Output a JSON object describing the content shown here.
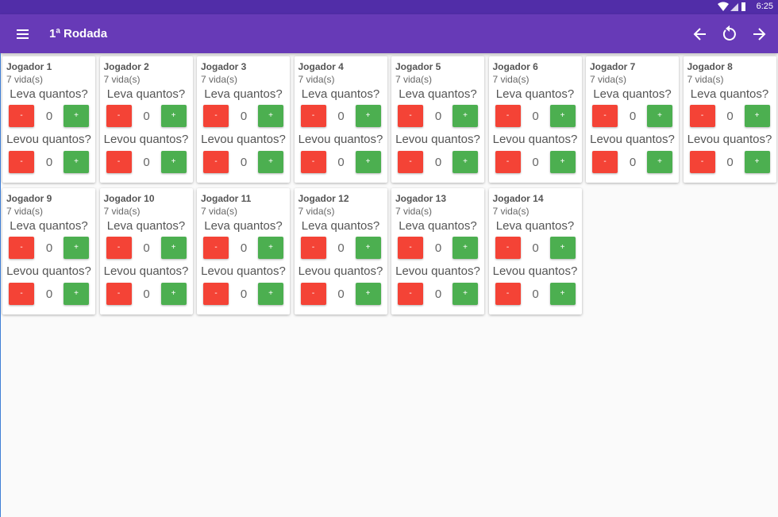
{
  "status_bar": {
    "time": "6:25"
  },
  "app_bar": {
    "title": "1ª Rodada"
  },
  "players": [
    {
      "name": "Jogador 1",
      "lives": "7 vida(s)",
      "bid_label": "Leva quantos?",
      "bid_minus": "-",
      "bid_value": 0,
      "bid_plus": "+",
      "won_label": "Levou quantos?",
      "won_minus": "-",
      "won_value": 0,
      "won_plus": "+"
    },
    {
      "name": "Jogador 2",
      "lives": "7 vida(s)",
      "bid_label": "Leva quantos?",
      "bid_minus": "-",
      "bid_value": 0,
      "bid_plus": "+",
      "won_label": "Levou quantos?",
      "won_minus": "-",
      "won_value": 0,
      "won_plus": "+"
    },
    {
      "name": "Jogador 3",
      "lives": "7 vida(s)",
      "bid_label": "Leva quantos?",
      "bid_minus": "-",
      "bid_value": 0,
      "bid_plus": "+",
      "won_label": "Levou quantos?",
      "won_minus": "-",
      "won_value": 0,
      "won_plus": "+"
    },
    {
      "name": "Jogador 4",
      "lives": "7 vida(s)",
      "bid_label": "Leva quantos?",
      "bid_minus": "-",
      "bid_value": 0,
      "bid_plus": "+",
      "won_label": "Levou quantos?",
      "won_minus": "-",
      "won_value": 0,
      "won_plus": "+"
    },
    {
      "name": "Jogador 5",
      "lives": "7 vida(s)",
      "bid_label": "Leva quantos?",
      "bid_minus": "-",
      "bid_value": 0,
      "bid_plus": "+",
      "won_label": "Levou quantos?",
      "won_minus": "-",
      "won_value": 0,
      "won_plus": "+"
    },
    {
      "name": "Jogador 6",
      "lives": "7 vida(s)",
      "bid_label": "Leva quantos?",
      "bid_minus": "-",
      "bid_value": 0,
      "bid_plus": "+",
      "won_label": "Levou quantos?",
      "won_minus": "-",
      "won_value": 0,
      "won_plus": "+"
    },
    {
      "name": "Jogador 7",
      "lives": "7 vida(s)",
      "bid_label": "Leva quantos?",
      "bid_minus": "-",
      "bid_value": 0,
      "bid_plus": "+",
      "won_label": "Levou quantos?",
      "won_minus": "-",
      "won_value": 0,
      "won_plus": "+"
    },
    {
      "name": "Jogador 8",
      "lives": "7 vida(s)",
      "bid_label": "Leva quantos?",
      "bid_minus": "-",
      "bid_value": 0,
      "bid_plus": "+",
      "won_label": "Levou quantos?",
      "won_minus": "-",
      "won_value": 0,
      "won_plus": "+"
    },
    {
      "name": "Jogador 9",
      "lives": "7 vida(s)",
      "bid_label": "Leva quantos?",
      "bid_minus": "-",
      "bid_value": 0,
      "bid_plus": "+",
      "won_label": "Levou quantos?",
      "won_minus": "-",
      "won_value": 0,
      "won_plus": "+"
    },
    {
      "name": "Jogador 10",
      "lives": "7 vida(s)",
      "bid_label": "Leva quantos?",
      "bid_minus": "-",
      "bid_value": 0,
      "bid_plus": "+",
      "won_label": "Levou quantos?",
      "won_minus": "-",
      "won_value": 0,
      "won_plus": "+"
    },
    {
      "name": "Jogador 11",
      "lives": "7 vida(s)",
      "bid_label": "Leva quantos?",
      "bid_minus": "-",
      "bid_value": 0,
      "bid_plus": "+",
      "won_label": "Levou quantos?",
      "won_minus": "-",
      "won_value": 0,
      "won_plus": "+"
    },
    {
      "name": "Jogador 12",
      "lives": "7 vida(s)",
      "bid_label": "Leva quantos?",
      "bid_minus": "-",
      "bid_value": 0,
      "bid_plus": "+",
      "won_label": "Levou quantos?",
      "won_minus": "-",
      "won_value": 0,
      "won_plus": "+"
    },
    {
      "name": "Jogador 13",
      "lives": "7 vida(s)",
      "bid_label": "Leva quantos?",
      "bid_minus": "-",
      "bid_value": 0,
      "bid_plus": "+",
      "won_label": "Levou quantos?",
      "won_minus": "-",
      "won_value": 0,
      "won_plus": "+"
    },
    {
      "name": "Jogador 14",
      "lives": "7 vida(s)",
      "bid_label": "Leva quantos?",
      "bid_minus": "-",
      "bid_value": 0,
      "bid_plus": "+",
      "won_label": "Levou quantos?",
      "won_minus": "-",
      "won_value": 0,
      "won_plus": "+"
    }
  ]
}
